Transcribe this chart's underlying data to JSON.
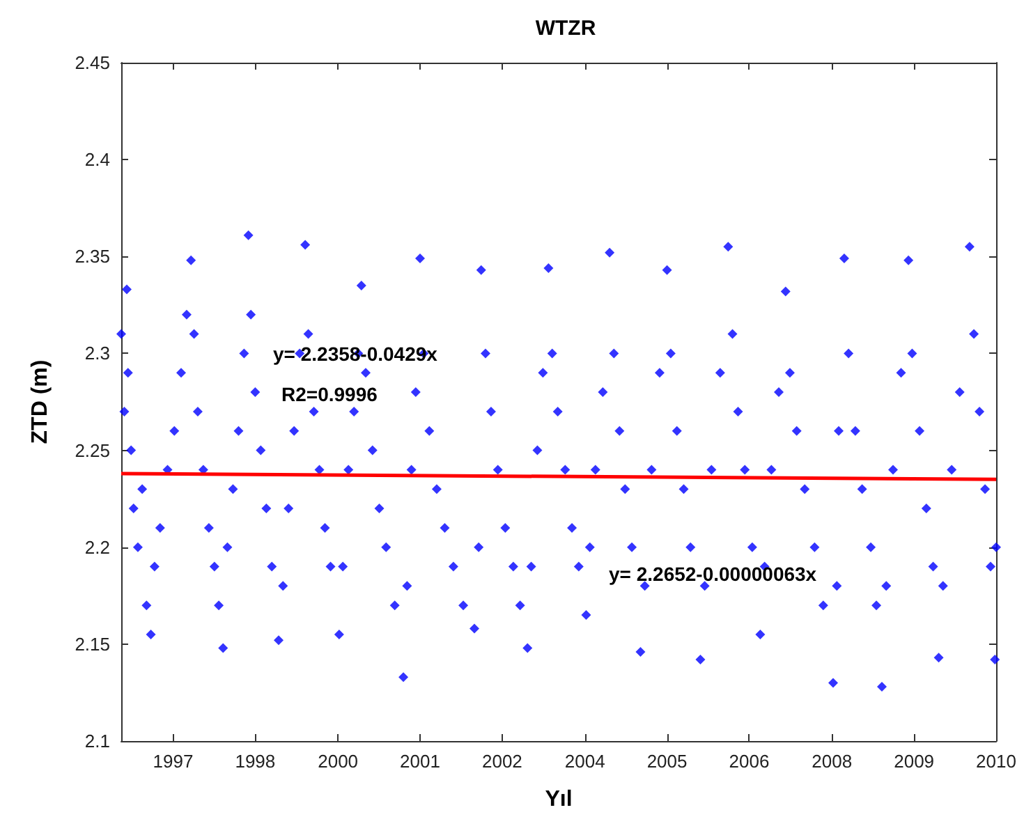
{
  "chart_data": {
    "type": "scatter",
    "title": "WTZR",
    "xlabel": "Yıl",
    "ylabel": "ZTD (m)",
    "xlim": [
      1996.16,
      2010.33
    ],
    "xticks": [
      1997,
      {
        "value": 1998.33,
        "label": "1998"
      },
      {
        "value": 1999.67,
        "label": "2000"
      },
      2001,
      {
        "value": 2002.33,
        "label": "2002"
      },
      {
        "value": 2003.67,
        "label": "2004"
      },
      2005,
      {
        "value": 2006.33,
        "label": "2006"
      },
      {
        "value": 2007.67,
        "label": "2008"
      },
      2009,
      {
        "value": 2010.33,
        "label": "2010"
      }
    ],
    "ylim": [
      2.1,
      2.45
    ],
    "yticks": [
      2.1,
      2.15,
      2.2,
      2.25,
      2.3,
      2.35,
      2.4,
      2.45
    ],
    "grid": false,
    "legend": false,
    "annotations": [
      "y= 2.2358-0.0429x",
      "R2=0.9996",
      "y= 2.2652-0.00000063x"
    ],
    "series": [
      {
        "color": "#0000ff",
        "marker": "diamond",
        "x": [
          1996.16,
          1996.21,
          1996.25,
          1996.27,
          1996.32,
          1996.36,
          1996.43,
          1996.5,
          1996.57,
          1996.64,
          1996.7,
          1996.79,
          1996.91,
          1997.02,
          1997.13,
          1997.22,
          1997.29,
          1997.34,
          1997.4,
          1997.49,
          1997.58,
          1997.67,
          1997.74,
          1997.81,
          1997.88,
          1997.97,
          1998.06,
          1998.15,
          1998.22,
          1998.26,
          1998.33,
          1998.42,
          1998.51,
          1998.6,
          1998.71,
          1998.78,
          1998.87,
          1998.96,
          1999.05,
          1999.14,
          1999.19,
          1999.28,
          1999.37,
          1999.46,
          1999.55,
          1999.69,
          1999.75,
          1999.84,
          1999.93,
          2000.0,
          2000.05,
          2000.12,
          2000.23,
          2000.34,
          2000.45,
          2000.59,
          2000.73,
          2000.79,
          2000.86,
          2000.93,
          2001.0,
          2001.06,
          2001.15,
          2001.27,
          2001.4,
          2001.54,
          2001.7,
          2001.88,
          2001.95,
          2001.99,
          2002.06,
          2002.15,
          2002.26,
          2002.38,
          2002.51,
          2002.62,
          2002.74,
          2002.8,
          2002.9,
          2002.99,
          2003.08,
          2003.14,
          2003.23,
          2003.35,
          2003.46,
          2003.57,
          2003.69,
          2003.75,
          2003.84,
          2003.96,
          2004.07,
          2004.14,
          2004.23,
          2004.32,
          2004.43,
          2004.57,
          2004.64,
          2004.75,
          2004.88,
          2005.0,
          2005.06,
          2005.16,
          2005.27,
          2005.38,
          2005.54,
          2005.61,
          2005.72,
          2005.86,
          2005.99,
          2006.06,
          2006.15,
          2006.26,
          2006.38,
          2006.51,
          2006.58,
          2006.69,
          2006.81,
          2006.92,
          2006.99,
          2007.1,
          2007.23,
          2007.39,
          2007.53,
          2007.69,
          2007.75,
          2007.78,
          2007.87,
          2007.94,
          2008.05,
          2008.16,
          2008.3,
          2008.39,
          2008.48,
          2008.55,
          2008.66,
          2008.79,
          2008.91,
          2008.97,
          2009.09,
          2009.2,
          2009.31,
          2009.4,
          2009.47,
          2009.61,
          2009.74,
          2009.9,
          2009.97,
          2010.06,
          2010.15,
          2010.24,
          2010.31,
          2010.33
        ],
        "values": [
          2.31,
          2.27,
          2.333,
          2.29,
          2.25,
          2.22,
          2.2,
          2.23,
          2.17,
          2.155,
          2.19,
          2.21,
          2.24,
          2.26,
          2.29,
          2.32,
          2.348,
          2.31,
          2.27,
          2.24,
          2.21,
          2.19,
          2.17,
          2.148,
          2.2,
          2.23,
          2.26,
          2.3,
          2.361,
          2.32,
          2.28,
          2.25,
          2.22,
          2.19,
          2.152,
          2.18,
          2.22,
          2.26,
          2.3,
          2.356,
          2.31,
          2.27,
          2.24,
          2.21,
          2.19,
          2.155,
          2.19,
          2.24,
          2.27,
          2.3,
          2.335,
          2.29,
          2.25,
          2.22,
          2.2,
          2.17,
          2.133,
          2.18,
          2.24,
          2.28,
          2.349,
          2.3,
          2.26,
          2.23,
          2.21,
          2.19,
          2.17,
          2.158,
          2.2,
          2.343,
          2.3,
          2.27,
          2.24,
          2.21,
          2.19,
          2.17,
          2.148,
          2.19,
          2.25,
          2.29,
          2.344,
          2.3,
          2.27,
          2.24,
          2.21,
          2.19,
          2.165,
          2.2,
          2.24,
          2.28,
          2.352,
          2.3,
          2.26,
          2.23,
          2.2,
          2.146,
          2.18,
          2.24,
          2.29,
          2.343,
          2.3,
          2.26,
          2.23,
          2.2,
          2.142,
          2.18,
          2.24,
          2.29,
          2.355,
          2.31,
          2.27,
          2.24,
          2.2,
          2.155,
          2.19,
          2.24,
          2.28,
          2.332,
          2.29,
          2.26,
          2.23,
          2.2,
          2.17,
          2.13,
          2.18,
          2.26,
          2.349,
          2.3,
          2.26,
          2.23,
          2.2,
          2.17,
          2.128,
          2.18,
          2.24,
          2.29,
          2.348,
          2.3,
          2.26,
          2.22,
          2.19,
          2.143,
          2.18,
          2.24,
          2.28,
          2.355,
          2.31,
          2.27,
          2.23,
          2.19,
          2.142,
          2.2
        ]
      },
      {
        "type": "line",
        "color": "#ff0000",
        "marker": "none",
        "x": [
          1996.16,
          2010.33
        ],
        "values": [
          2.238,
          2.235
        ]
      }
    ]
  }
}
